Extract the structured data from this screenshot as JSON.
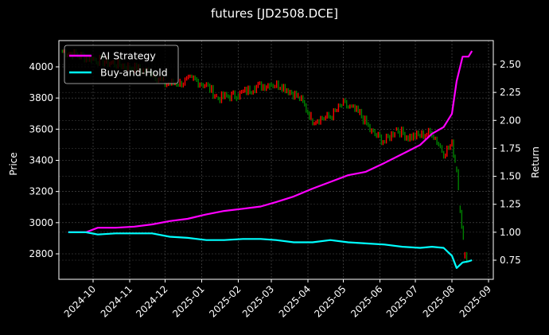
{
  "chart_data": {
    "type": "line",
    "title": "futures [JD2508.DCE]",
    "xlabel": "",
    "ylabel_left": "Price",
    "ylabel_right": "Return",
    "x_ticks": [
      "2024-10",
      "2024-11",
      "2024-12",
      "2025-01",
      "2025-02",
      "2025-03",
      "2025-04",
      "2025-05",
      "2025-06",
      "2025-07",
      "2025-08",
      "2025-09"
    ],
    "y_left_ticks": [
      2800,
      3000,
      3200,
      3400,
      3600,
      3800,
      4000
    ],
    "y_left_range": [
      2660,
      4170
    ],
    "y_right_ticks": [
      "0.75",
      "1.00",
      "1.25",
      "1.50",
      "1.75",
      "2.00",
      "2.25",
      "2.50"
    ],
    "y_right_range": [
      0.58,
      2.7
    ],
    "grid": true,
    "legend_position": "upper left",
    "legend": [
      {
        "name": "AI Strategy",
        "color": "#ff00ff"
      },
      {
        "name": "Buy-and-Hold",
        "color": "#00ffff"
      }
    ],
    "series": [
      {
        "name": "AI Strategy",
        "axis": "right",
        "color": "#ff00ff",
        "x": [
          "2024-09-10",
          "2024-09-25",
          "2024-10-05",
          "2024-10-20",
          "2024-11-05",
          "2024-11-20",
          "2024-12-05",
          "2024-12-20",
          "2025-01-05",
          "2025-01-20",
          "2025-02-05",
          "2025-02-20",
          "2025-03-05",
          "2025-03-20",
          "2025-04-05",
          "2025-04-20",
          "2025-05-05",
          "2025-05-20",
          "2025-06-05",
          "2025-06-20",
          "2025-07-05",
          "2025-07-15",
          "2025-07-25",
          "2025-08-01",
          "2025-08-05",
          "2025-08-10",
          "2025-08-15",
          "2025-08-18"
        ],
        "values": [
          1.0,
          1.0,
          1.04,
          1.04,
          1.05,
          1.07,
          1.1,
          1.12,
          1.16,
          1.19,
          1.21,
          1.23,
          1.27,
          1.32,
          1.39,
          1.45,
          1.51,
          1.54,
          1.62,
          1.7,
          1.78,
          1.88,
          1.94,
          2.06,
          2.35,
          2.57,
          2.57,
          2.62
        ]
      },
      {
        "name": "Buy-and-Hold",
        "axis": "right",
        "color": "#00ffff",
        "x": [
          "2024-09-10",
          "2024-09-25",
          "2024-10-05",
          "2024-10-20",
          "2024-11-05",
          "2024-11-20",
          "2024-12-05",
          "2024-12-20",
          "2025-01-05",
          "2025-01-20",
          "2025-02-05",
          "2025-02-20",
          "2025-03-05",
          "2025-03-20",
          "2025-04-05",
          "2025-04-20",
          "2025-05-05",
          "2025-05-20",
          "2025-06-05",
          "2025-06-20",
          "2025-07-05",
          "2025-07-15",
          "2025-07-25",
          "2025-08-01",
          "2025-08-05",
          "2025-08-10",
          "2025-08-15",
          "2025-08-18"
        ],
        "values": [
          1.0,
          1.0,
          0.98,
          0.99,
          0.99,
          0.99,
          0.96,
          0.95,
          0.93,
          0.93,
          0.94,
          0.94,
          0.93,
          0.91,
          0.91,
          0.93,
          0.91,
          0.9,
          0.89,
          0.87,
          0.86,
          0.87,
          0.86,
          0.79,
          0.68,
          0.73,
          0.74,
          0.75
        ]
      },
      {
        "name": "Price (candles)",
        "axis": "left",
        "type": "candlestick",
        "up_color": "#ff0000",
        "down_color": "#008000",
        "x": [
          "2024-09-05",
          "2024-09-15",
          "2024-10-01",
          "2024-11-01",
          "2024-11-20",
          "2024-12-01",
          "2024-12-15",
          "2024-12-25",
          "2025-01-05",
          "2025-01-15",
          "2025-02-01",
          "2025-02-15",
          "2025-03-01",
          "2025-03-10",
          "2025-03-25",
          "2025-04-05",
          "2025-04-20",
          "2025-05-01",
          "2025-05-15",
          "2025-05-25",
          "2025-06-05",
          "2025-06-15",
          "2025-06-25",
          "2025-07-05",
          "2025-07-15",
          "2025-07-25",
          "2025-08-01",
          "2025-08-05",
          "2025-08-08",
          "2025-08-12",
          "2025-08-15"
        ],
        "close": [
          4100,
          4080,
          4050,
          4000,
          3960,
          3890,
          3900,
          3920,
          3880,
          3800,
          3820,
          3870,
          3890,
          3880,
          3800,
          3660,
          3680,
          3760,
          3700,
          3580,
          3520,
          3600,
          3550,
          3560,
          3580,
          3450,
          3500,
          3350,
          3100,
          2780,
          2780
        ]
      }
    ]
  }
}
